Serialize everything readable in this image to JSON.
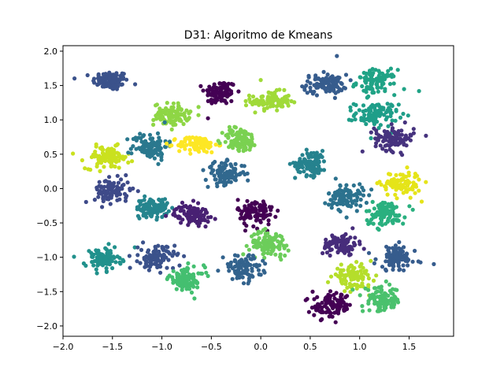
{
  "chart_data": {
    "type": "scatter",
    "title": "D31: Algoritmo de Kmeans",
    "xlabel": "",
    "ylabel": "",
    "xlim": [
      -2.0,
      1.95
    ],
    "ylim": [
      -2.15,
      2.08
    ],
    "xticks": [
      -2.0,
      -1.5,
      -1.0,
      -0.5,
      0.0,
      0.5,
      1.0,
      1.5
    ],
    "yticks": [
      -2.0,
      -1.5,
      -1.0,
      -0.5,
      0.0,
      0.5,
      1.0,
      1.5,
      2.0
    ],
    "xtick_labels": [
      "−2.0",
      "−1.5",
      "−1.0",
      "−0.5",
      "0.0",
      "0.5",
      "1.0",
      "1.5"
    ],
    "ytick_labels": [
      "−2.0",
      "−1.5",
      "−1.0",
      "−0.5",
      "0.0",
      "0.5",
      "1.0",
      "1.5",
      "2.0"
    ],
    "grid": false,
    "legend": "none",
    "colormap": "viridis",
    "points_per_cluster": 100,
    "clusters": [
      {
        "cx": -1.52,
        "cy": 1.57,
        "sx": 0.09,
        "sy": 0.07,
        "color": "#3b528b"
      },
      {
        "cx": -0.41,
        "cy": 1.4,
        "sx": 0.08,
        "sy": 0.09,
        "color": "#440154"
      },
      {
        "cx": 0.1,
        "cy": 1.27,
        "sx": 0.1,
        "sy": 0.07,
        "color": "#a0da39"
      },
      {
        "cx": 0.65,
        "cy": 1.52,
        "sx": 0.11,
        "sy": 0.07,
        "color": "#365c8d"
      },
      {
        "cx": 1.17,
        "cy": 1.55,
        "sx": 0.1,
        "sy": 0.09,
        "color": "#20a386"
      },
      {
        "cx": -0.9,
        "cy": 1.08,
        "sx": 0.09,
        "sy": 0.08,
        "color": "#8ed645"
      },
      {
        "cx": 1.17,
        "cy": 1.08,
        "sx": 0.11,
        "sy": 0.09,
        "color": "#1f9e89"
      },
      {
        "cx": -1.55,
        "cy": 0.45,
        "sx": 0.11,
        "sy": 0.08,
        "color": "#cae11f"
      },
      {
        "cx": -1.12,
        "cy": 0.62,
        "sx": 0.09,
        "sy": 0.1,
        "color": "#2a788e"
      },
      {
        "cx": -0.64,
        "cy": 0.64,
        "sx": 0.1,
        "sy": 0.06,
        "color": "#fde725"
      },
      {
        "cx": -0.21,
        "cy": 0.71,
        "sx": 0.09,
        "sy": 0.09,
        "color": "#7ad151"
      },
      {
        "cx": 0.51,
        "cy": 0.37,
        "sx": 0.08,
        "sy": 0.09,
        "color": "#26828e"
      },
      {
        "cx": 1.35,
        "cy": 0.73,
        "sx": 0.1,
        "sy": 0.09,
        "color": "#46337e"
      },
      {
        "cx": -0.36,
        "cy": 0.22,
        "sx": 0.1,
        "sy": 0.08,
        "color": "#31688e"
      },
      {
        "cx": 1.42,
        "cy": 0.07,
        "sx": 0.1,
        "sy": 0.09,
        "color": "#e5e419"
      },
      {
        "cx": -1.5,
        "cy": -0.03,
        "sx": 0.09,
        "sy": 0.09,
        "color": "#3e4a89"
      },
      {
        "cx": -1.1,
        "cy": -0.28,
        "sx": 0.08,
        "sy": 0.07,
        "color": "#25858e"
      },
      {
        "cx": -0.69,
        "cy": -0.38,
        "sx": 0.09,
        "sy": 0.07,
        "color": "#482173"
      },
      {
        "cx": -0.05,
        "cy": -0.35,
        "sx": 0.09,
        "sy": 0.1,
        "color": "#440154"
      },
      {
        "cx": 0.86,
        "cy": -0.13,
        "sx": 0.09,
        "sy": 0.1,
        "color": "#2c728e"
      },
      {
        "cx": 1.26,
        "cy": -0.36,
        "sx": 0.1,
        "sy": 0.09,
        "color": "#2ab07f"
      },
      {
        "cx": 0.09,
        "cy": -0.8,
        "sx": 0.1,
        "sy": 0.09,
        "color": "#6ccd5a"
      },
      {
        "cx": 0.81,
        "cy": -0.81,
        "sx": 0.09,
        "sy": 0.08,
        "color": "#472d7b"
      },
      {
        "cx": -1.6,
        "cy": -1.03,
        "sx": 0.09,
        "sy": 0.08,
        "color": "#21918c"
      },
      {
        "cx": -1.05,
        "cy": -1.0,
        "sx": 0.09,
        "sy": 0.09,
        "color": "#3b528b"
      },
      {
        "cx": -0.18,
        "cy": -1.16,
        "sx": 0.1,
        "sy": 0.09,
        "color": "#33638d"
      },
      {
        "cx": 1.37,
        "cy": -1.01,
        "sx": 0.1,
        "sy": 0.09,
        "color": "#365c8d"
      },
      {
        "cx": -0.75,
        "cy": -1.32,
        "sx": 0.09,
        "sy": 0.09,
        "color": "#44bf70"
      },
      {
        "cx": 0.93,
        "cy": -1.28,
        "sx": 0.1,
        "sy": 0.08,
        "color": "#b5de2b"
      },
      {
        "cx": 1.23,
        "cy": -1.62,
        "sx": 0.1,
        "sy": 0.09,
        "color": "#4ac16d"
      },
      {
        "cx": 0.72,
        "cy": -1.71,
        "sx": 0.1,
        "sy": 0.09,
        "color": "#440154"
      }
    ],
    "outliers": [
      {
        "x": -1.9,
        "y": 0.51,
        "color": "#cae11f"
      },
      {
        "x": 1.75,
        "y": -1.1,
        "color": "#365c8d"
      },
      {
        "x": 1.6,
        "y": 1.42,
        "color": "#20a386"
      },
      {
        "x": 0.0,
        "y": 1.58,
        "color": "#a0da39"
      },
      {
        "x": -0.75,
        "y": 0.74,
        "color": "#fde725"
      },
      {
        "x": 0.77,
        "y": 1.93,
        "color": "#365c8d"
      },
      {
        "x": 0.57,
        "y": -1.58,
        "color": "#440154"
      }
    ]
  }
}
